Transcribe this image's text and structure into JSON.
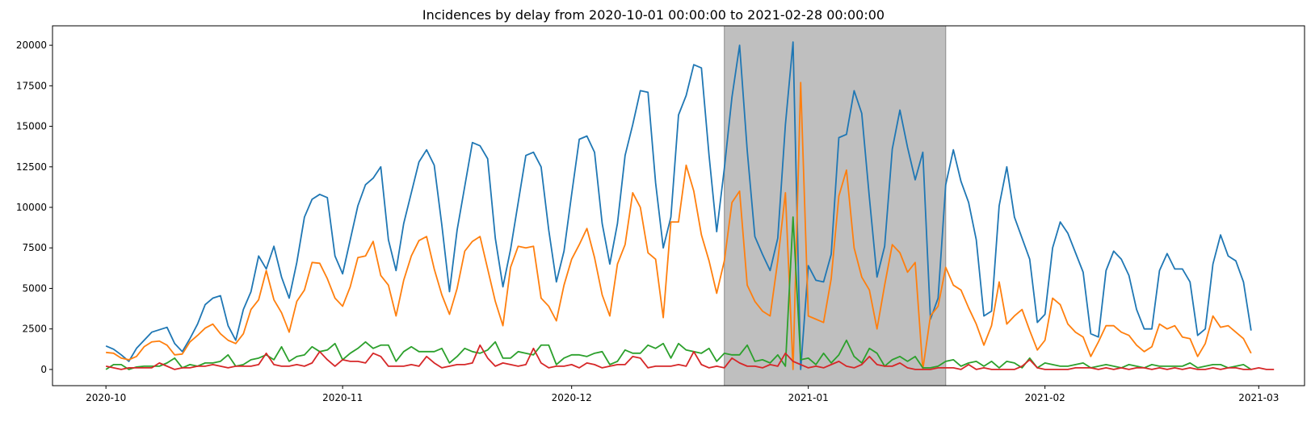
{
  "chart_data": {
    "type": "line",
    "title": "Incidences by delay from 2020-10-01 00:00:00 to 2021-02-28 00:00:00",
    "xlabel": "",
    "ylabel": "",
    "x_start": "2020-10-01",
    "x_end": "2021-02-28",
    "xlim": [
      "2020-09-24",
      "2021-03-07"
    ],
    "ylim": [
      -1000,
      21200
    ],
    "x_ticks": [
      "2020-10-01",
      "2020-11-01",
      "2020-12-01",
      "2021-01-01",
      "2021-02-01",
      "2021-03-01"
    ],
    "x_tick_labels": [
      "2020-10",
      "2020-11",
      "2020-12",
      "2021-01",
      "2021-02",
      "2021-03"
    ],
    "y_ticks": [
      0,
      2500,
      5000,
      7500,
      10000,
      12500,
      15000,
      17500,
      20000
    ],
    "y_tick_labels": [
      "0",
      "2500",
      "5000",
      "7500",
      "10000",
      "12500",
      "15000",
      "17500",
      "20000"
    ],
    "grid": false,
    "shaded_region": {
      "start": "2020-12-21",
      "end": "2021-01-19",
      "color": "#bfbfbf"
    },
    "series": [
      {
        "color": "#1f77b4",
        "values": [
          1450,
          1250,
          900,
          500,
          1300,
          1800,
          2300,
          2450,
          2600,
          1600,
          1100,
          1900,
          2800,
          4000,
          4400,
          4550,
          2700,
          1800,
          3700,
          4800,
          7000,
          6200,
          7600,
          5700,
          4400,
          6600,
          9400,
          10500,
          10800,
          10600,
          7000,
          5900,
          8000,
          10100,
          11400,
          11800,
          12500,
          8000,
          6100,
          9000,
          10900,
          12800,
          13550,
          12600,
          8900,
          4800,
          8600,
          11300,
          14000,
          13800,
          13000,
          8100,
          5100,
          7400,
          10300,
          13200,
          13400,
          12500,
          8600,
          5400,
          7300,
          10800,
          14200,
          14400,
          13400,
          9000,
          6500,
          9000,
          13200,
          15100,
          17200,
          17100,
          11500,
          7500,
          9400,
          15700,
          16900,
          18800,
          18600,
          13200,
          8500,
          12400,
          16800,
          20000,
          13500,
          8200,
          7100,
          6100,
          8100,
          15100,
          20200,
          0,
          6400,
          5500,
          5400,
          7100,
          14300,
          14500,
          17200,
          15800,
          10600,
          5700,
          7600,
          13600,
          16000,
          13700,
          11700,
          13400,
          3100,
          4400,
          11400,
          13550,
          11600,
          10300,
          8000,
          3300,
          3600,
          10100,
          12500,
          9400,
          8100,
          6800,
          2900,
          3400,
          7500,
          9100,
          8400,
          7200,
          6000,
          2200,
          2000,
          6100,
          7300,
          6800,
          5800,
          3700,
          2500,
          2500,
          6100,
          7150,
          6200,
          6200,
          5400,
          2100,
          2500,
          6500,
          8300,
          7000,
          6700,
          5400,
          2400
        ]
      },
      {
        "color": "#ff7f0e",
        "values": [
          1050,
          1000,
          700,
          600,
          800,
          1400,
          1700,
          1750,
          1500,
          900,
          950,
          1700,
          2100,
          2550,
          2800,
          2200,
          1800,
          1600,
          2200,
          3700,
          4300,
          6100,
          4300,
          3500,
          2300,
          4200,
          4900,
          6600,
          6550,
          5600,
          4400,
          3900,
          5100,
          6900,
          7000,
          7900,
          5800,
          5200,
          3300,
          5500,
          7000,
          7950,
          8200,
          6200,
          4600,
          3400,
          5000,
          7300,
          7900,
          8200,
          6200,
          4200,
          2700,
          6300,
          7600,
          7500,
          7600,
          4400,
          3900,
          3000,
          5200,
          6800,
          7700,
          8700,
          6900,
          4600,
          3300,
          6500,
          7700,
          10900,
          10000,
          7200,
          6800,
          3200,
          9100,
          9100,
          12600,
          11000,
          8300,
          6700,
          4700,
          6700,
          10300,
          11000,
          5200,
          4200,
          3600,
          3300,
          6700,
          10900,
          0,
          17700,
          3300,
          3100,
          2900,
          5600,
          10700,
          12300,
          7500,
          5700,
          4900,
          2500,
          5200,
          7700,
          7200,
          6000,
          6600,
          0,
          3300,
          3900,
          6300,
          5200,
          4900,
          3800,
          2800,
          1500,
          2700,
          5400,
          2800,
          3300,
          3700,
          2400,
          1200,
          1800,
          4400,
          4000,
          2800,
          2300,
          2000,
          800,
          1700,
          2700,
          2700,
          2300,
          2100,
          1500,
          1100,
          1400,
          2800,
          2500,
          2700,
          2000,
          1900,
          800,
          1600,
          3300,
          2600,
          2700,
          2300,
          1900,
          1000
        ]
      },
      {
        "color": "#2ca02c",
        "values": [
          0,
          300,
          300,
          0,
          150,
          200,
          200,
          200,
          400,
          700,
          100,
          300,
          200,
          400,
          400,
          500,
          900,
          200,
          300,
          600,
          700,
          900,
          600,
          1400,
          500,
          800,
          900,
          1400,
          1100,
          1200,
          1600,
          600,
          1000,
          1300,
          1700,
          1300,
          1500,
          1500,
          500,
          1100,
          1400,
          1100,
          1100,
          1100,
          1300,
          400,
          800,
          1300,
          1100,
          1000,
          1200,
          1700,
          700,
          700,
          1100,
          1000,
          900,
          1500,
          1500,
          300,
          700,
          900,
          900,
          800,
          1000,
          1100,
          300,
          500,
          1200,
          1000,
          1000,
          1500,
          1300,
          1600,
          700,
          1600,
          1200,
          1100,
          1000,
          1300,
          500,
          1000,
          900,
          900,
          1500,
          500,
          600,
          400,
          900,
          200,
          9400,
          600,
          700,
          300,
          1000,
          400,
          900,
          1800,
          800,
          400,
          1300,
          1000,
          200,
          600,
          800,
          500,
          800,
          100,
          100,
          200,
          500,
          600,
          200,
          400,
          500,
          200,
          500,
          100,
          500,
          400,
          100,
          700,
          100,
          400,
          300,
          200,
          200,
          300,
          400,
          100,
          200,
          300,
          200,
          100,
          300,
          200,
          100,
          300,
          200,
          200,
          200,
          200,
          400,
          100,
          200,
          300,
          300,
          100,
          200,
          300,
          0
        ]
      },
      {
        "color": "#d62728",
        "values": [
          200,
          100,
          0,
          100,
          100,
          100,
          100,
          400,
          200,
          0,
          100,
          100,
          200,
          200,
          300,
          200,
          100,
          200,
          200,
          200,
          300,
          1000,
          300,
          200,
          200,
          300,
          200,
          400,
          1100,
          600,
          200,
          600,
          500,
          500,
          400,
          1000,
          800,
          200,
          200,
          200,
          300,
          200,
          800,
          400,
          100,
          200,
          300,
          300,
          400,
          1500,
          700,
          200,
          400,
          300,
          200,
          300,
          1300,
          400,
          100,
          200,
          200,
          300,
          100,
          400,
          300,
          100,
          200,
          300,
          300,
          800,
          700,
          100,
          200,
          200,
          200,
          300,
          200,
          1100,
          300,
          100,
          200,
          100,
          700,
          400,
          200,
          200,
          100,
          300,
          200,
          1000,
          500,
          300,
          100,
          200,
          100,
          300,
          500,
          200,
          100,
          300,
          800,
          300,
          200,
          200,
          400,
          100,
          0,
          0,
          0,
          100,
          100,
          100,
          0,
          300,
          0,
          100,
          0,
          0,
          0,
          0,
          200,
          600,
          100,
          0,
          0,
          0,
          0,
          100,
          100,
          100,
          0,
          100,
          0,
          100,
          0,
          100,
          100,
          0,
          100,
          0,
          100,
          0,
          100,
          0,
          0,
          100,
          0,
          100,
          100,
          0,
          0,
          100,
          0,
          0
        ]
      }
    ]
  }
}
